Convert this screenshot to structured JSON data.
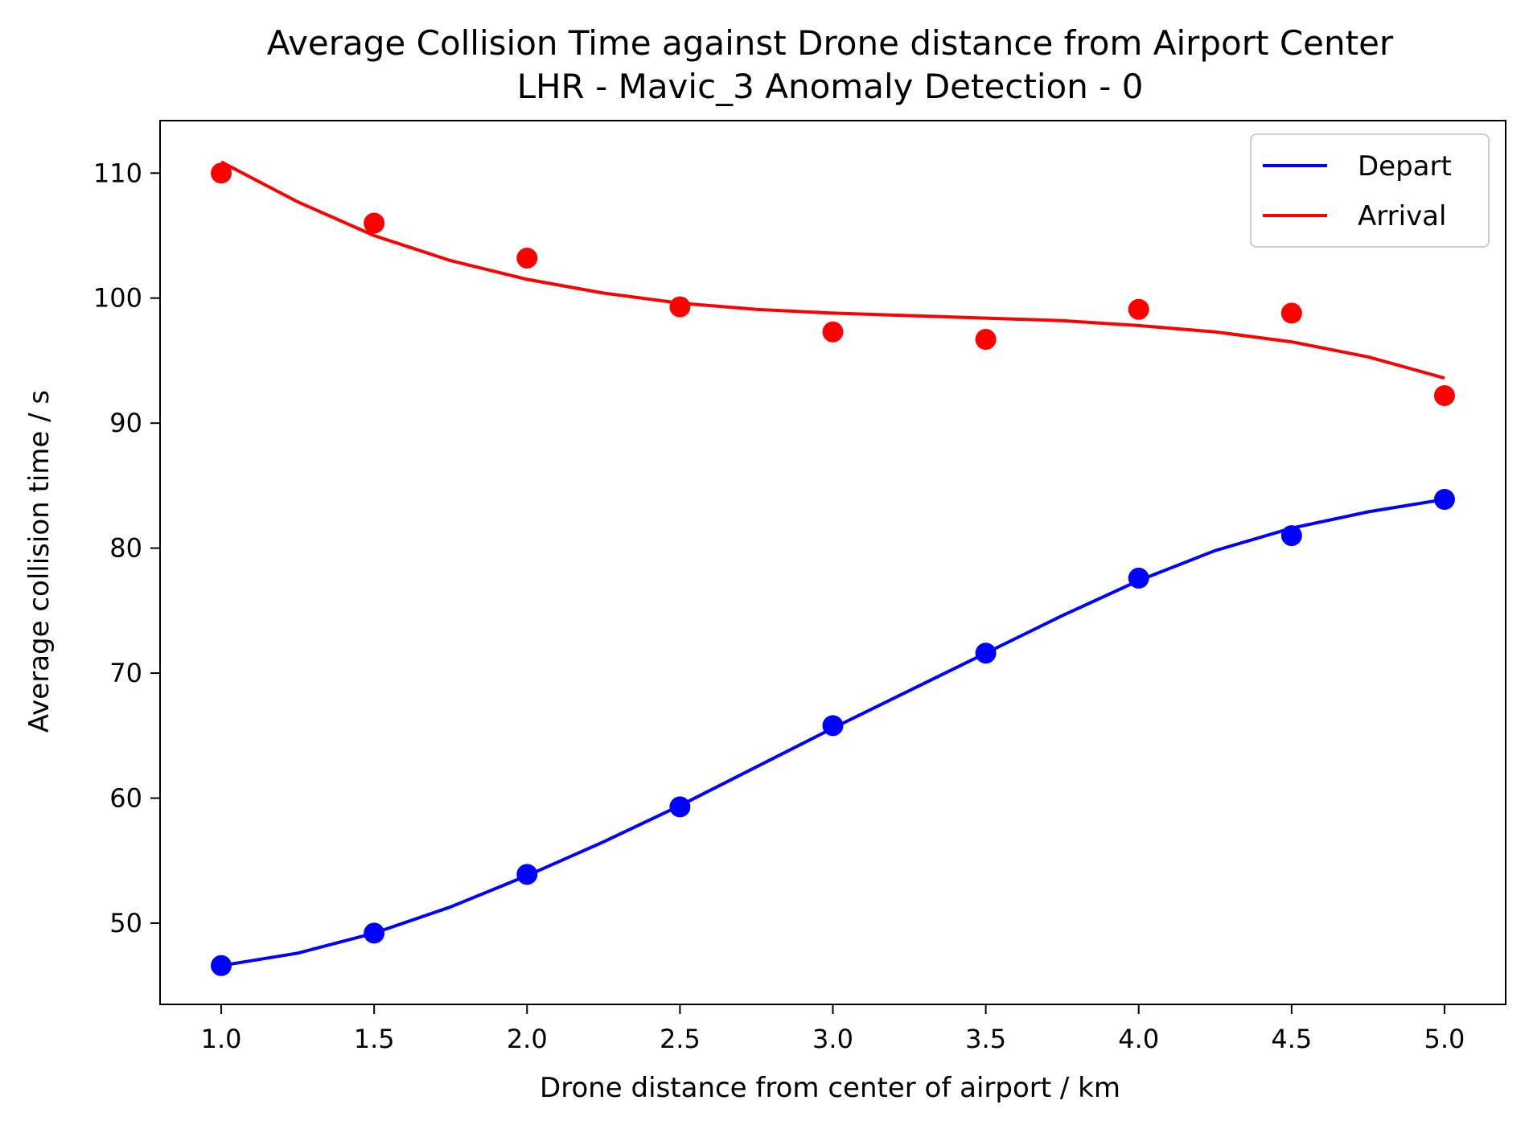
{
  "chart_data": {
    "type": "line",
    "title": "Average Collision Time against Drone distance from Airport Center",
    "subtitle": "LHR - Mavic_3 Anomaly Detection - 0",
    "xlabel": "Drone distance from center of airport / km",
    "ylabel": "Average collision time / s",
    "xlim": [
      0.8,
      5.2
    ],
    "ylim": [
      43.5,
      114.2
    ],
    "xticks": [
      "1.0",
      "1.5",
      "2.0",
      "2.5",
      "3.0",
      "3.5",
      "4.0",
      "4.5",
      "5.0"
    ],
    "yticks": [
      "50",
      "60",
      "70",
      "80",
      "90",
      "100",
      "110"
    ],
    "grid": false,
    "legend_position": "top-right",
    "series": [
      {
        "name": "Depart",
        "color": "#0000ff",
        "points": {
          "x": [
            1.0,
            1.5,
            2.0,
            2.5,
            3.0,
            3.5,
            4.0,
            4.5,
            5.0
          ],
          "y": [
            46.6,
            49.2,
            53.9,
            59.3,
            65.8,
            71.6,
            77.6,
            81.0,
            83.9
          ]
        },
        "fit": {
          "x": [
            1.0,
            1.25,
            1.5,
            1.75,
            2.0,
            2.25,
            2.5,
            2.75,
            3.0,
            3.25,
            3.5,
            3.75,
            4.0,
            4.25,
            4.5,
            4.75,
            5.0
          ],
          "y": [
            46.6,
            47.6,
            49.2,
            51.3,
            53.8,
            56.5,
            59.4,
            62.5,
            65.6,
            68.6,
            71.6,
            74.6,
            77.4,
            79.8,
            81.6,
            82.9,
            83.9
          ]
        }
      },
      {
        "name": "Arrival",
        "color": "#ff0000",
        "points": {
          "x": [
            1.0,
            1.5,
            2.0,
            2.5,
            3.0,
            3.5,
            4.0,
            4.5,
            5.0
          ],
          "y": [
            110.0,
            106.0,
            103.2,
            99.3,
            97.3,
            96.7,
            99.1,
            98.8,
            92.2
          ]
        },
        "fit": {
          "x": [
            1.0,
            1.25,
            1.5,
            1.75,
            2.0,
            2.25,
            2.5,
            2.75,
            3.0,
            3.25,
            3.5,
            3.75,
            4.0,
            4.25,
            4.5,
            4.75,
            5.0
          ],
          "y": [
            110.9,
            107.7,
            105.0,
            103.0,
            101.5,
            100.4,
            99.6,
            99.1,
            98.8,
            98.6,
            98.4,
            98.2,
            97.8,
            97.3,
            96.5,
            95.3,
            93.6
          ]
        }
      }
    ]
  }
}
